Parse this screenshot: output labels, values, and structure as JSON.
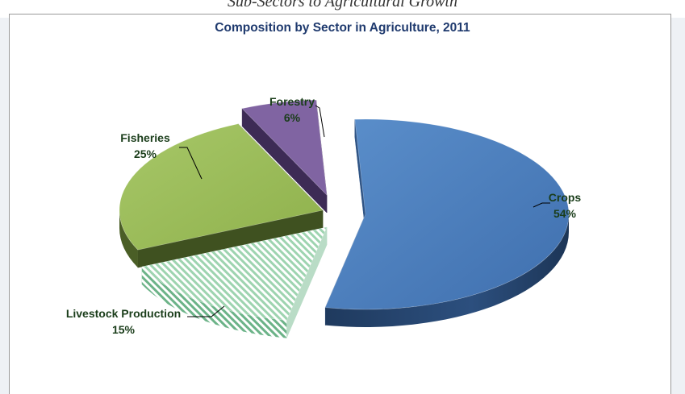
{
  "page": {
    "caption": "Sub-Sectors to Agricultural Growth"
  },
  "chart_data": {
    "type": "pie",
    "title": "Composition by Sector in Agriculture, 2011",
    "slices": [
      {
        "label": "Crops",
        "value": 54,
        "value_label": "54%",
        "color": "#4f81bd"
      },
      {
        "label": "Livestock Production",
        "value": 15,
        "value_label": "15%",
        "color": "#c6e7d3"
      },
      {
        "label": "Fisheries",
        "value": 25,
        "value_label": "25%",
        "color": "#9bbb59"
      },
      {
        "label": "Forestry",
        "value": 6,
        "value_label": "6%",
        "color": "#8064a2"
      }
    ],
    "label_color": "#1a3d1a",
    "title_color": "#1f3a6e",
    "exploded": true,
    "three_d": true
  }
}
